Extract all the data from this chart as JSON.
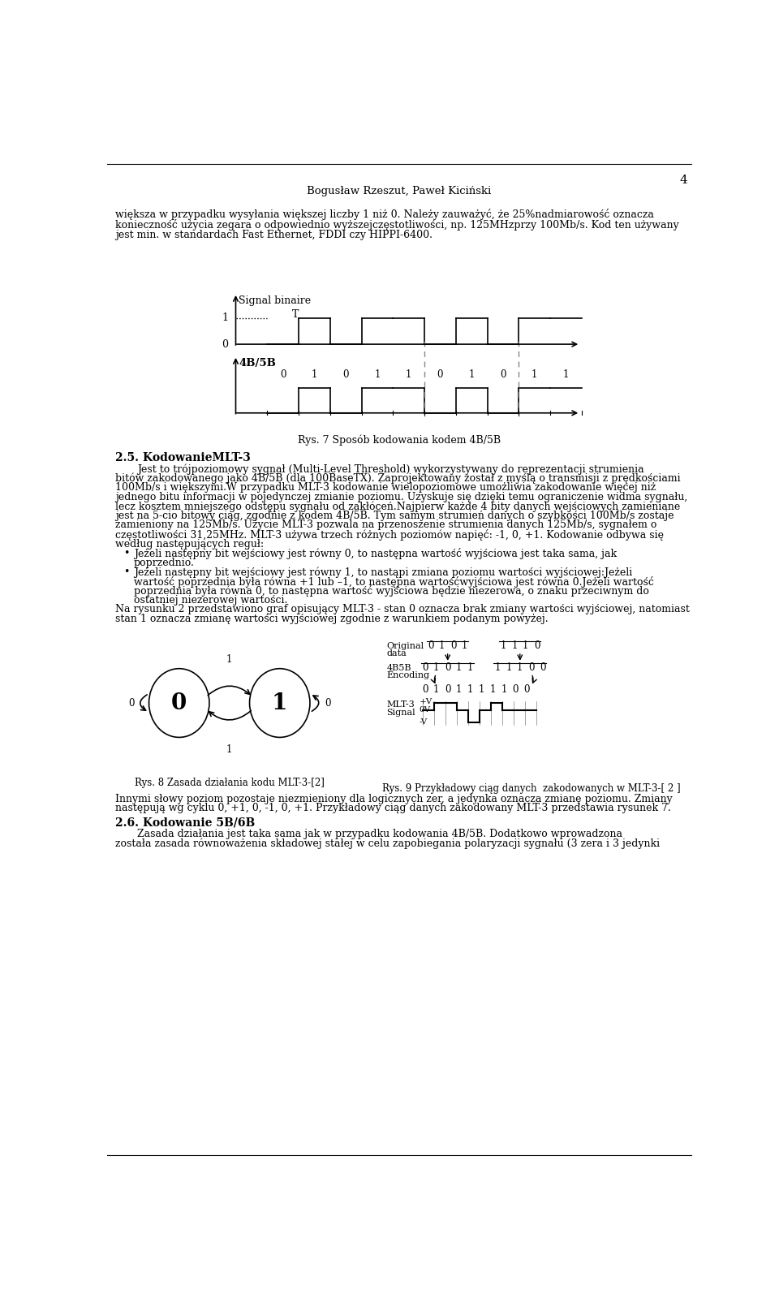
{
  "page_number": "4",
  "header": "Bogusław Rzeszut, Paweł Kiciński",
  "intro_text_line1": "większa w przypadku wysyłania większej liczby 1 niż 0. Należy zauważyć, że 25%nadmiarowość oznacza",
  "intro_text_line2": "konieczność użycia zegara o odpowiednio wyższejczęstotliwości, np. 125MHzprzy 100Mb/s. Kod ten używany",
  "intro_text_line3": "jest min. w standardach Fast Ethernet, FDDI czy HIPPI-6400.",
  "signal_binaire_label": "Signal binaire",
  "T_label": "T",
  "fourB5B_label": "4B/5B",
  "bits_wave": [
    0,
    1,
    0,
    1,
    1,
    0,
    1,
    0,
    1,
    1
  ],
  "caption7": "Rys. 7 Sposób kodowania kodem 4B/5B",
  "section_title": "2.5. KodowanieMLT-3",
  "para1_indent": "        ",
  "para1_line1": "Jest to trójpoziomowy sygnał (Multi-Level Threshold) wykorzystywany do reprezentacji strumienia",
  "para1_line2": "bitów zakodowanego jako 4B/5B (dla 100BaseTX). Zaprojektowany został z myślą o transmisji z prędkościami",
  "para1_line3": "100Mb/s i większymi.W przypadku MLT-3 kodowanie wielopoziomowe umożliwia zakodowanie więcej niż",
  "para1_line4": "jednego bitu informacji w pojedynczej zmianie poziomu. Uzyskuje się dzięki temu ograniczenie widma sygnału,",
  "para1_line5": "lecz kosztem mniejszego odstępu sygnału od zakłóceń.Najpierw każde 4 bity danych wejściowych zamieniane",
  "para1_line6": "jest na 5-cio bitowy ciąg, zgodnie z kodem 4B/5B. Tym samym strumień danych o szybkości 100Mb/s zostaje",
  "para1_line7": "zamieniony na 125Mb/s. Użycie MLT-3 pozwala na przenoszenie strumienia danych 125Mb/s, sygnałem o",
  "para1_line8": "częstotliwości 31,25MHz. MLT-3 używa trzech różnych poziomów napięć: -1, 0, +1. Kodowanie odbywa się",
  "para1_line9": "według następujących reguł:",
  "bullet1_line1": "Jeżeli następny bit wejściowy jest równy 0, to następna wartość wyjściowa jest taka sama, jak",
  "bullet1_line2": "poprzednio.",
  "bullet2_line1": "Jeżeli następny bit wejściowy jest równy 1, to nastąpi zmiana poziomu wartości wyjściowej:Jeżeli",
  "bullet2_line2": "wartość poprzednia była równa +1 lub –1, to następna wartośćwyjściowa jest równa 0.Jeżeli wartość",
  "bullet2_line3": "poprzednia była równa 0, to następna wartość wyjściowa będzie niezerowa, o znaku przeciwnym do",
  "bullet2_line4": "ostatniej niezerowej wartości.",
  "para2_line1": "Na rysunku 2 przedstawiono graf opisujący MLT-3 - stan 0 oznacza brak zmiany wartości wyjściowej, natomiast",
  "para2_line2": "stan 1 oznacza zmianę wartości wyjściowej zgodnie z warunkiem podanym powyżej.",
  "fig8_caption": "Rys. 8 Zasada działania kodu MLT-3-[2]",
  "fig9_caption": "Rys. 9 Przykładowy ciąg danych  zakodowanych w MLT-3-[ 2 ]",
  "mlt3_levels": [
    0,
    1,
    1,
    0,
    -1,
    0,
    1,
    0,
    0,
    0
  ],
  "mlt3_bit_labels": [
    "0",
    "1",
    "0",
    "1",
    "1",
    "1",
    "1",
    "1",
    "0",
    "0"
  ],
  "para3_line1": "Innymi słowy poziom pozostaje niezmieniony dla logicznych zer, a jedynka oznacza zmianę poziomu. Zmiany",
  "para3_line2": "następują wg cyklu 0, +1, 0, -1, 0, +1. Przykładowy ciąg danych zakodowany MLT-3 przedstawia rysunek 7.",
  "section2_title": "2.6. Kodowanie 5B/6B",
  "para4_line1": "Zasada działania jest taka sama jak w przypadku kodowania 4B/5B. Dodatkowo wprowadzona",
  "para4_line2": "została zasada równoważenia składowej stałej w celu zapobiegania polaryzacji sygnału (3 zera i 3 jedynki"
}
